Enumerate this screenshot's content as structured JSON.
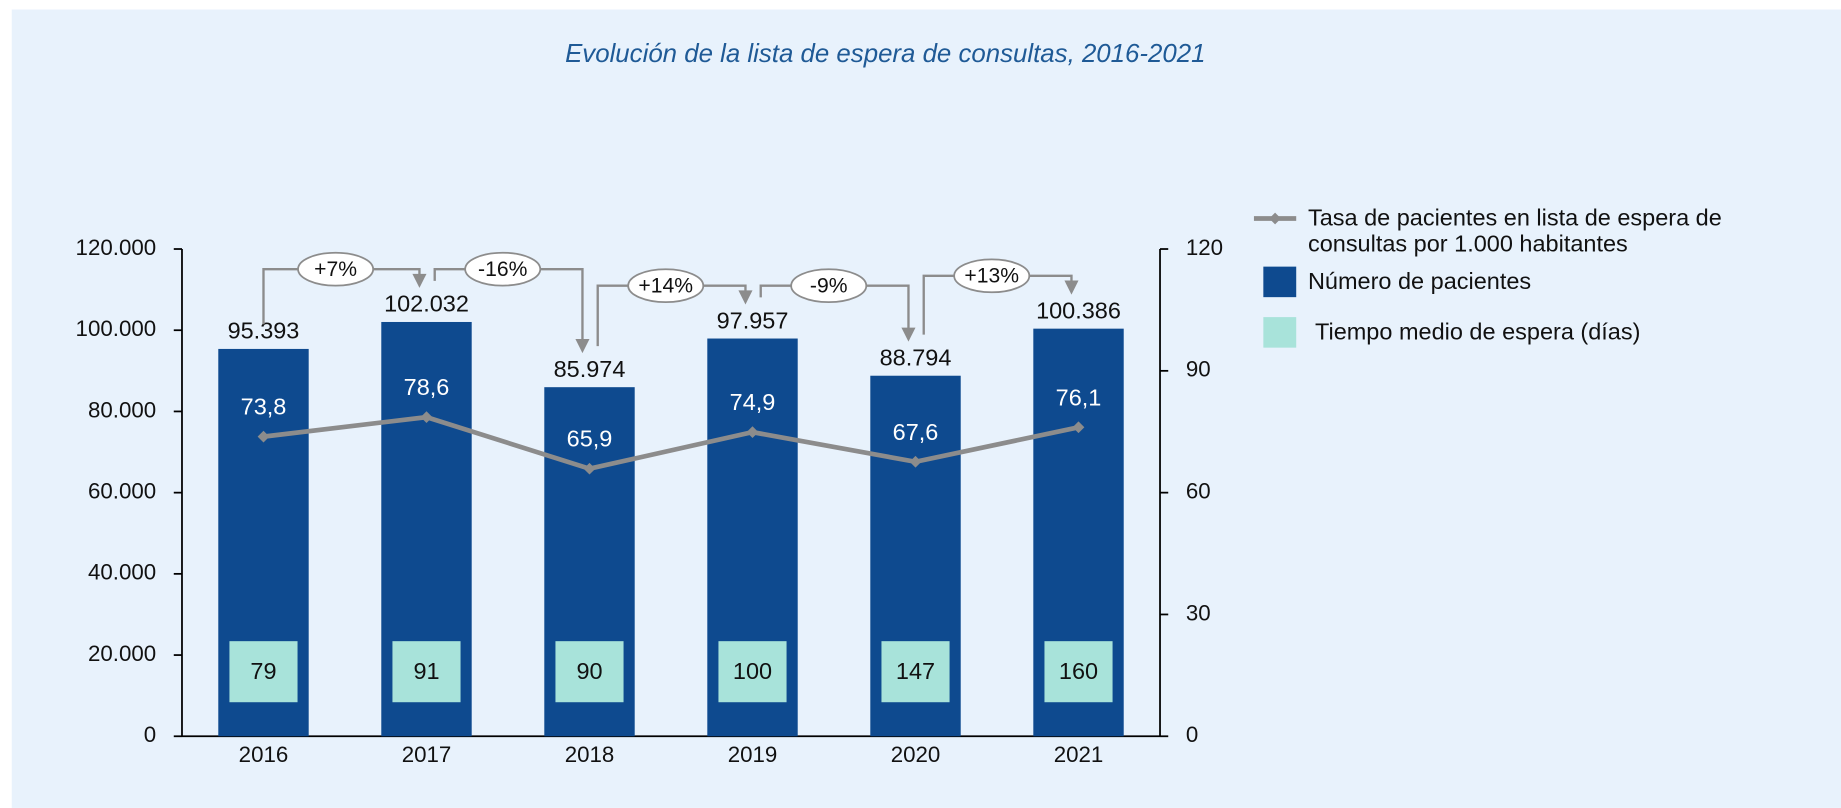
{
  "chart_data": {
    "type": "bar",
    "title": "Evolución de la lista de espera de consultas, 2016-2021",
    "categories": [
      "2016",
      "2017",
      "2018",
      "2019",
      "2020",
      "2021"
    ],
    "series": [
      {
        "name": "Número de pacientes",
        "type": "bar",
        "color": "#0e4a8f",
        "values": [
          95393,
          102032,
          85974,
          97957,
          88794,
          100386
        ],
        "value_labels": [
          "95.393",
          "102.032",
          "85.974",
          "97.957",
          "88.794",
          "100.386"
        ]
      },
      {
        "name": "Tasa de pacientes en lista de espera de consultas por 1.000 habitantes",
        "type": "line",
        "axis": "y2",
        "color": "#8c8c8c",
        "values": [
          73.8,
          78.6,
          65.9,
          74.9,
          67.6,
          76.1
        ],
        "value_labels": [
          "73,8",
          "78,6",
          "65,9",
          "74,9",
          "67,6",
          "76,1"
        ]
      },
      {
        "name": "Tiempo medio de espera (días)",
        "type": "box",
        "color": "#a8e3da",
        "values": [
          79,
          91,
          90,
          100,
          147,
          160
        ]
      }
    ],
    "annotations": [
      "+7%",
      "-16%",
      "+14%",
      "-9%",
      "+13%"
    ],
    "ylim": [
      0,
      120000
    ],
    "yticks": [
      0,
      {
        "value": 20000,
        "label": "20.000"
      },
      {
        "value": 40000,
        "label": "40.000"
      },
      {
        "value": 60000,
        "label": "60.000"
      },
      {
        "value": 80000,
        "label": "80.000"
      },
      {
        "value": 100000,
        "label": "100.000"
      },
      {
        "value": 120000,
        "label": "120.000"
      }
    ],
    "y2lim": [
      0,
      120
    ],
    "y2ticks": [
      0,
      30,
      60,
      90,
      120
    ],
    "legend": "right"
  }
}
